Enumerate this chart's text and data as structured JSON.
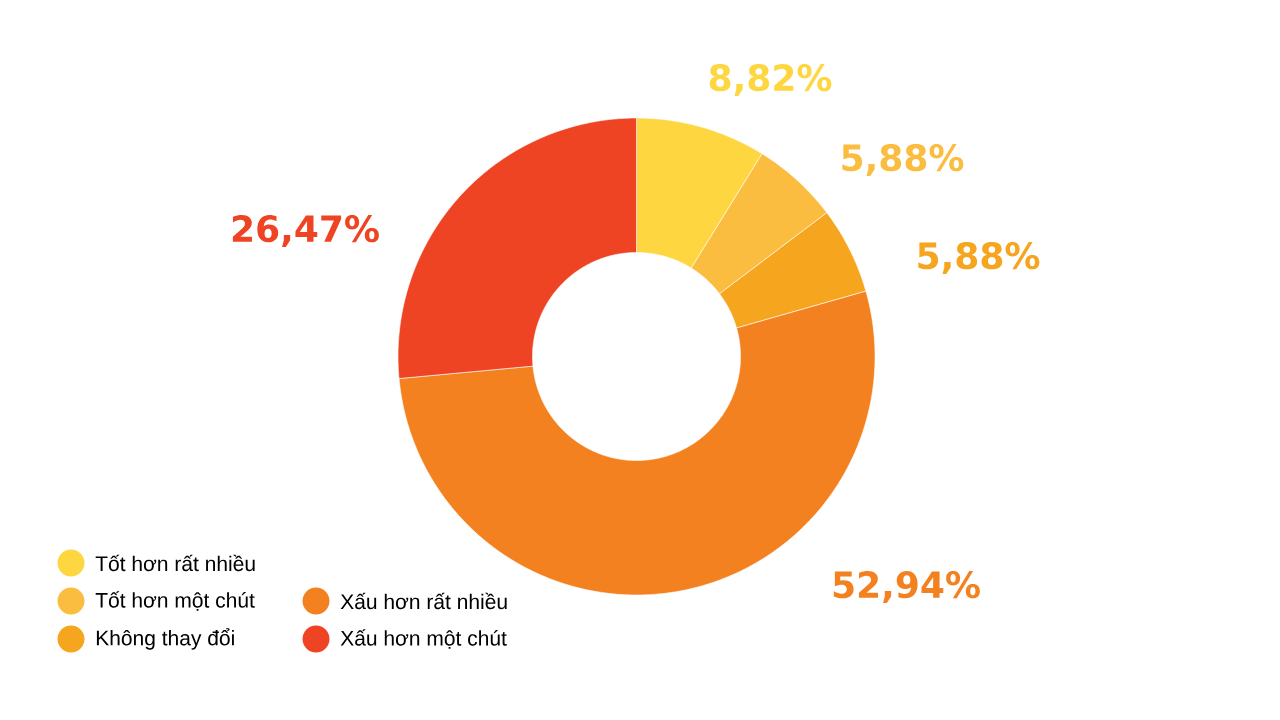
{
  "chart_data": {
    "type": "donut",
    "categories": [
      "Tốt hơn rất nhiều",
      "Tốt hơn một chút",
      "Không thay đổi",
      "Xấu hơn rất nhiều",
      "Xấu hơn một chút"
    ],
    "values": [
      8.82,
      5.88,
      5.88,
      52.94,
      26.47
    ],
    "colors": [
      "#fed640",
      "#fbbd40",
      "#f6a51f",
      "#f48120",
      "#ee4423"
    ],
    "value_labels": [
      "8,82%",
      "5,88%",
      "5,88%",
      "52,94%",
      "26,47%"
    ],
    "legend": "bottom left"
  }
}
